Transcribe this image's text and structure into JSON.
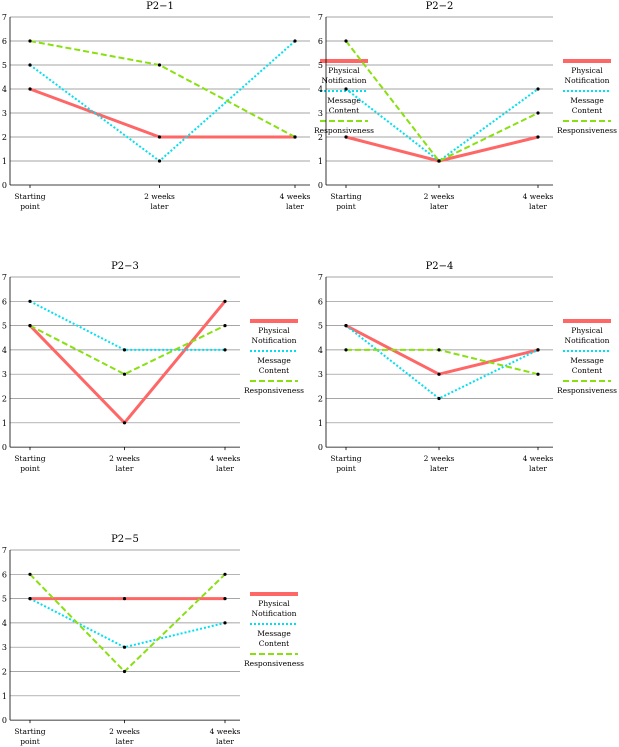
{
  "colors": {
    "physical": "#ff6666",
    "message": "#00e0f0",
    "responsiveness": "#88e010",
    "grid": "#888888",
    "axis": "#000000",
    "marker": "#000000"
  },
  "legend_labels": {
    "physical": [
      "Physical",
      "Notification"
    ],
    "message": [
      "Message",
      "Content"
    ],
    "responsiveness": [
      "Responsiveness"
    ]
  },
  "chart_data": [
    {
      "type": "line",
      "title": "P2−1",
      "categories": [
        "Starting point",
        "2 weeks later",
        "4 weeks later"
      ],
      "category_lines": [
        [
          "Starting",
          "point"
        ],
        [
          "2 weeks",
          "later"
        ],
        [
          "4 weeks",
          "later"
        ]
      ],
      "ylim": [
        0,
        7
      ],
      "yticks": [
        "0",
        "1",
        "2",
        "3",
        "4",
        "5",
        "6",
        "7"
      ],
      "grid": true,
      "legend": "right",
      "series": [
        {
          "key": "physical",
          "name": "Physical Notification",
          "values": [
            4,
            2,
            2
          ]
        },
        {
          "key": "message",
          "name": "Message Content",
          "values": [
            5,
            1,
            6
          ]
        },
        {
          "key": "responsiveness",
          "name": "Responsiveness",
          "values": [
            6,
            5,
            2
          ]
        }
      ]
    },
    {
      "type": "line",
      "title": "P2−2",
      "categories": [
        "Starting point",
        "2 weeks later",
        "4 weeks later"
      ],
      "category_lines": [
        [
          "Starting",
          "point"
        ],
        [
          "2 weeks",
          "later"
        ],
        [
          "4 weeks",
          "later"
        ]
      ],
      "ylim": [
        0,
        7
      ],
      "yticks": [
        "0",
        "1",
        "2",
        "3",
        "4",
        "5",
        "6",
        "7"
      ],
      "grid": true,
      "legend": "right",
      "series": [
        {
          "key": "physical",
          "name": "Physical Notification",
          "values": [
            2,
            1,
            2
          ]
        },
        {
          "key": "message",
          "name": "Message Content",
          "values": [
            4,
            1,
            4
          ]
        },
        {
          "key": "responsiveness",
          "name": "Responsiveness",
          "values": [
            6,
            1,
            3
          ]
        }
      ]
    },
    {
      "type": "line",
      "title": "P2−3",
      "categories": [
        "Starting point",
        "2 weeks later",
        "4 weeks later"
      ],
      "category_lines": [
        [
          "Starting",
          "point"
        ],
        [
          "2 weeks",
          "later"
        ],
        [
          "4 weeks",
          "later"
        ]
      ],
      "ylim": [
        0,
        7
      ],
      "yticks": [
        "0",
        "1",
        "2",
        "3",
        "4",
        "5",
        "6",
        "7"
      ],
      "grid": true,
      "legend": "right",
      "series": [
        {
          "key": "physical",
          "name": "Physical Notification",
          "values": [
            5,
            1,
            6
          ]
        },
        {
          "key": "message",
          "name": "Message Content",
          "values": [
            6,
            4,
            4
          ]
        },
        {
          "key": "responsiveness",
          "name": "Responsiveness",
          "values": [
            5,
            3,
            5
          ]
        }
      ]
    },
    {
      "type": "line",
      "title": "P2−4",
      "categories": [
        "Starting point",
        "2 weeks later",
        "4 weeks later"
      ],
      "category_lines": [
        [
          "Starting",
          "point"
        ],
        [
          "2 weeks",
          "later"
        ],
        [
          "4 weeks",
          "later"
        ]
      ],
      "ylim": [
        0,
        7
      ],
      "yticks": [
        "0",
        "1",
        "2",
        "3",
        "4",
        "5",
        "6",
        "7"
      ],
      "grid": true,
      "legend": "right",
      "series": [
        {
          "key": "physical",
          "name": "Physical Notification",
          "values": [
            5,
            3,
            4
          ]
        },
        {
          "key": "message",
          "name": "Message Content",
          "values": [
            5,
            2,
            4
          ]
        },
        {
          "key": "responsiveness",
          "name": "Responsiveness",
          "values": [
            4,
            4,
            3
          ]
        }
      ]
    },
    {
      "type": "line",
      "title": "P2−5",
      "categories": [
        "Starting point",
        "2 weeks later",
        "4 weeks later"
      ],
      "category_lines": [
        [
          "Starting",
          "point"
        ],
        [
          "2 weeks",
          "later"
        ],
        [
          "4 weeks",
          "later"
        ]
      ],
      "ylim": [
        0,
        7
      ],
      "yticks": [
        "0",
        "1",
        "2",
        "3",
        "4",
        "5",
        "6",
        "7"
      ],
      "grid": true,
      "legend": "right",
      "series": [
        {
          "key": "physical",
          "name": "Physical Notification",
          "values": [
            5,
            5,
            5
          ]
        },
        {
          "key": "message",
          "name": "Message Content",
          "values": [
            5,
            3,
            4
          ]
        },
        {
          "key": "responsiveness",
          "name": "Responsiveness",
          "values": [
            6,
            2,
            6
          ]
        }
      ]
    }
  ]
}
